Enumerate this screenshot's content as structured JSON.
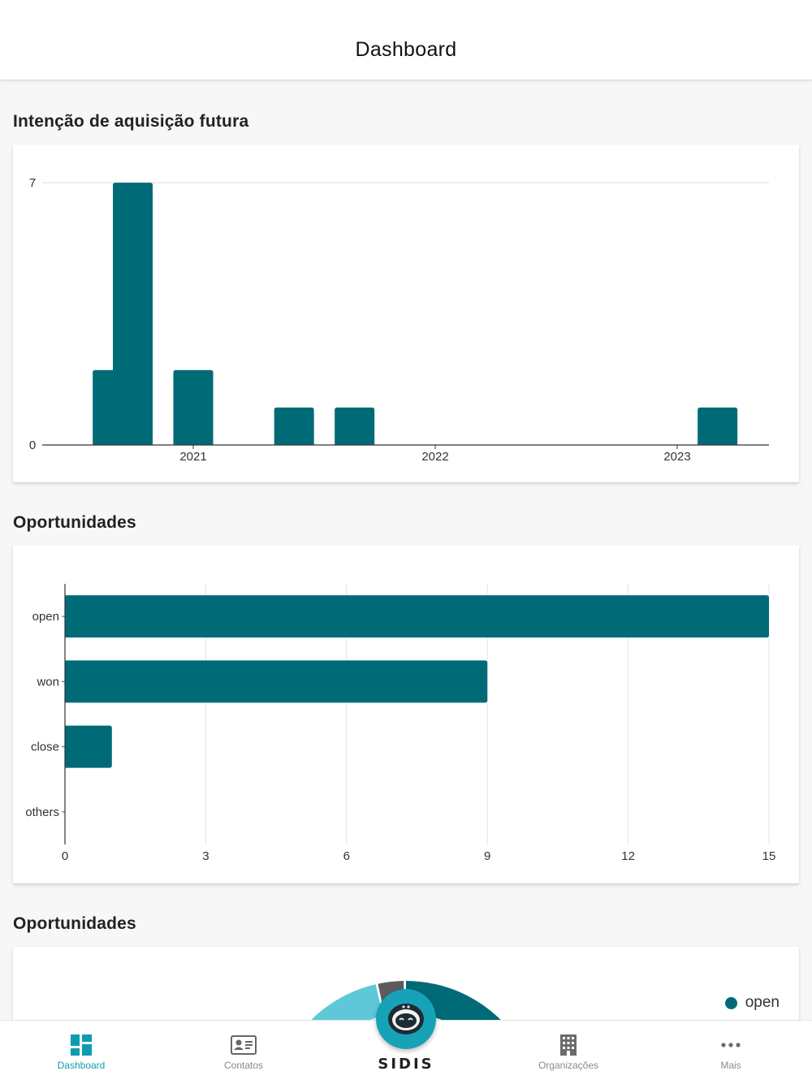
{
  "header": {
    "title": "Dashboard"
  },
  "sections": [
    {
      "title": "Intenção de aquisição futura"
    },
    {
      "title": "Oportunidades"
    },
    {
      "title": "Oportunidades"
    }
  ],
  "chart_data": [
    {
      "type": "bar",
      "title": "Intenção de aquisição futura",
      "x_tick_labels": [
        "2021",
        "2022",
        "2023"
      ],
      "y_tick_labels": [
        "7",
        "0"
      ],
      "ylim": [
        0,
        7
      ],
      "bars": [
        {
          "x": "2020-09",
          "value": 2
        },
        {
          "x": "2020-10",
          "value": 7
        },
        {
          "x": "2021-01",
          "value": 2
        },
        {
          "x": "2021-06",
          "value": 1
        },
        {
          "x": "2021-09",
          "value": 1
        },
        {
          "x": "2023-03",
          "value": 1
        }
      ],
      "color": "#006b77",
      "grid": "horizontal"
    },
    {
      "type": "bar",
      "orientation": "horizontal",
      "title": "Oportunidades",
      "categories": [
        "open",
        "won",
        "close",
        "others"
      ],
      "values": [
        15,
        9,
        1,
        0
      ],
      "x_ticks": [
        "0",
        "3",
        "6",
        "9",
        "12",
        "15"
      ],
      "xlim": [
        0,
        15
      ],
      "color": "#006b77",
      "grid": "vertical"
    },
    {
      "type": "pie",
      "title": "Oportunidades",
      "legend": [
        {
          "label": "open",
          "color": "#006b77"
        }
      ],
      "visible_slice_colors": [
        "#006b77",
        "#5b5b5b",
        "#5ec8d8"
      ]
    }
  ],
  "tabbar": {
    "items": [
      {
        "label": "Dashboard",
        "icon": "dashboard-icon",
        "active": true
      },
      {
        "label": "Contatos",
        "icon": "contact-card-icon",
        "active": false
      },
      {
        "label": "Organizações",
        "icon": "building-icon",
        "active": false
      },
      {
        "label": "Mais",
        "icon": "more-dots-icon",
        "active": false
      }
    ],
    "center": {
      "icon": "robot-assistant-icon",
      "brand": "SIDIS"
    }
  },
  "colors": {
    "accent": "#0c9bb0",
    "bar": "#006b77",
    "center_button": "#18a2b8"
  }
}
